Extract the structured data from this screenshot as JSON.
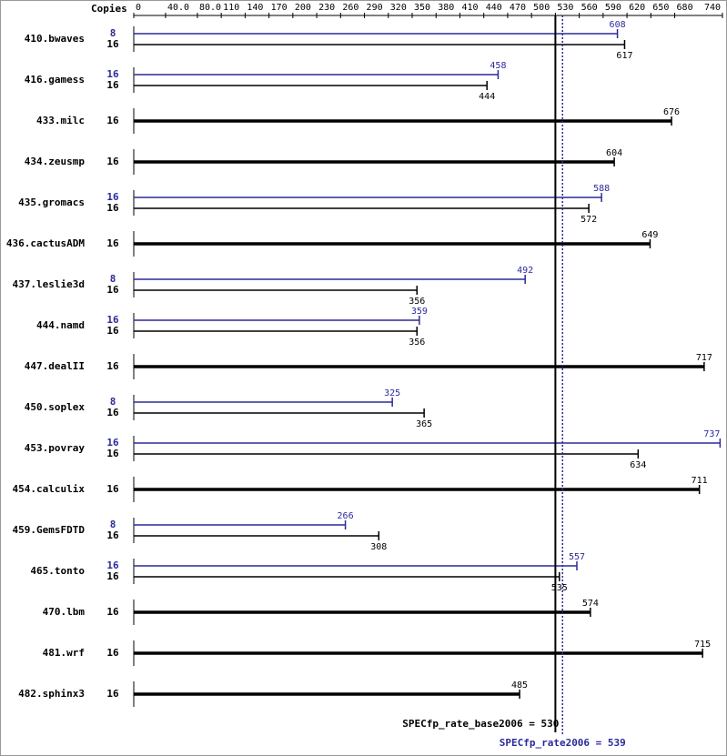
{
  "chart_data": {
    "type": "spec-bar",
    "xlabel": "Copies",
    "xlim": [
      0,
      740
    ],
    "xticks": [
      0,
      {
        "value": 40,
        "label": "40.0"
      },
      {
        "value": 80,
        "label": "80.0"
      },
      110,
      140,
      170,
      200,
      230,
      260,
      290,
      320,
      350,
      380,
      410,
      440,
      470,
      500,
      530,
      560,
      590,
      620,
      650,
      680,
      740
    ],
    "peak_color": "#2a2a9a",
    "base_color": "#000000",
    "benchmarks": [
      {
        "name": "410.bwaves",
        "peak": {
          "copies": 8,
          "value": 608
        },
        "base": {
          "copies": 16,
          "value": 617
        }
      },
      {
        "name": "416.gamess",
        "peak": {
          "copies": 16,
          "value": 458
        },
        "base": {
          "copies": 16,
          "value": 444
        }
      },
      {
        "name": "433.milc",
        "base": {
          "copies": 16,
          "value": 676
        }
      },
      {
        "name": "434.zeusmp",
        "base": {
          "copies": 16,
          "value": 604
        }
      },
      {
        "name": "435.gromacs",
        "peak": {
          "copies": 16,
          "value": 588
        },
        "base": {
          "copies": 16,
          "value": 572
        }
      },
      {
        "name": "436.cactusADM",
        "base": {
          "copies": 16,
          "value": 649
        }
      },
      {
        "name": "437.leslie3d",
        "peak": {
          "copies": 8,
          "value": 492
        },
        "base": {
          "copies": 16,
          "value": 356
        }
      },
      {
        "name": "444.namd",
        "peak": {
          "copies": 16,
          "value": 359
        },
        "base": {
          "copies": 16,
          "value": 356
        }
      },
      {
        "name": "447.dealII",
        "base": {
          "copies": 16,
          "value": 717
        }
      },
      {
        "name": "450.soplex",
        "peak": {
          "copies": 8,
          "value": 325
        },
        "base": {
          "copies": 16,
          "value": 365
        }
      },
      {
        "name": "453.povray",
        "peak": {
          "copies": 16,
          "value": 737
        },
        "base": {
          "copies": 16,
          "value": 634
        }
      },
      {
        "name": "454.calculix",
        "base": {
          "copies": 16,
          "value": 711
        }
      },
      {
        "name": "459.GemsFDTD",
        "peak": {
          "copies": 8,
          "value": 266
        },
        "base": {
          "copies": 16,
          "value": 308
        }
      },
      {
        "name": "465.tonto",
        "peak": {
          "copies": 16,
          "value": 557
        },
        "base": {
          "copies": 16,
          "value": 535
        }
      },
      {
        "name": "470.lbm",
        "base": {
          "copies": 16,
          "value": 574
        }
      },
      {
        "name": "481.wrf",
        "base": {
          "copies": 16,
          "value": 715
        }
      },
      {
        "name": "482.sphinx3",
        "base": {
          "copies": 16,
          "value": 485
        }
      }
    ],
    "overall_base": {
      "label": "SPECfp_rate_base2006 = 530",
      "value": 530
    },
    "overall_peak": {
      "label": "SPECfp_rate2006 = 539",
      "value": 539
    }
  }
}
